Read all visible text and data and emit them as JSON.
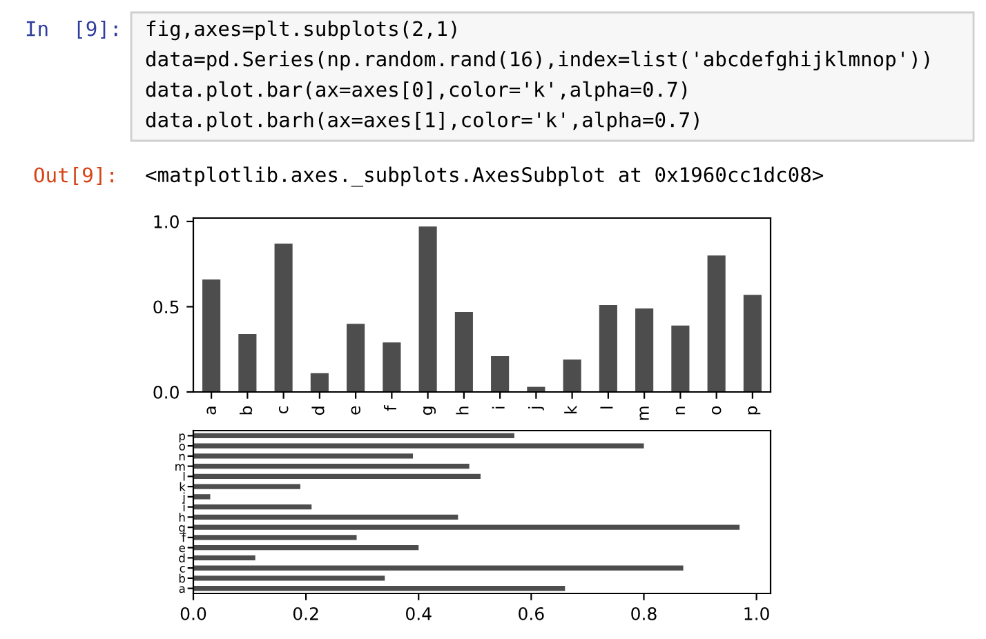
{
  "chart_data": [
    {
      "type": "bar",
      "annotations": [
        "In  [9]:",
        "fig,axes=plt.subplots(2,1)",
        "data=pd.Series(np.random.rand(16),index=list('abcdefghijklmnop'))",
        "data.plot.bar(ax=axes[0],color='k',alpha=0.7)",
        "data.plot.barh(ax=axes[1],color='k',alpha=0.7)",
        "Out[9]:",
        "<matplotlib.axes._subplots.AxesSubplot at 0x1960cc1dc08>"
      ],
      "categories": [
        "a",
        "b",
        "c",
        "d",
        "e",
        "f",
        "g",
        "h",
        "i",
        "j",
        "k",
        "l",
        "m",
        "n",
        "o",
        "p"
      ],
      "values": [
        0.66,
        0.34,
        0.87,
        0.11,
        0.4,
        0.29,
        0.97,
        0.47,
        0.21,
        0.03,
        0.19,
        0.51,
        0.49,
        0.39,
        0.8,
        0.57
      ],
      "color": "#4d4d4d",
      "ylim": [
        0,
        1.02
      ],
      "yticks": [
        {
          "value": 0,
          "label": "0.0"
        },
        {
          "value": 0.5,
          "label": "0.5"
        },
        {
          "value": 1,
          "label": "1.0"
        }
      ],
      "grid": false,
      "legend": false
    },
    {
      "type": "bar",
      "orientation": "horizontal",
      "categories": [
        "p",
        "o",
        "n",
        "m",
        "l",
        "k",
        "j",
        "i",
        "h",
        "g",
        "f",
        "e",
        "d",
        "c",
        "b",
        "a"
      ],
      "values": [
        0.57,
        0.8,
        0.39,
        0.49,
        0.51,
        0.19,
        0.03,
        0.21,
        0.47,
        0.97,
        0.29,
        0.4,
        0.11,
        0.87,
        0.34,
        0.66
      ],
      "color": "#4d4d4d",
      "xlim": [
        0,
        1.025
      ],
      "xticks": [
        {
          "value": 0,
          "label": "0.0"
        },
        {
          "value": 0.2,
          "label": "0.2"
        },
        {
          "value": 0.4,
          "label": "0.4"
        },
        {
          "value": 0.6,
          "label": "0.6"
        },
        {
          "value": 0.8,
          "label": "0.8"
        },
        {
          "value": 1,
          "label": "1.0"
        }
      ],
      "grid": false,
      "legend": false
    }
  ]
}
